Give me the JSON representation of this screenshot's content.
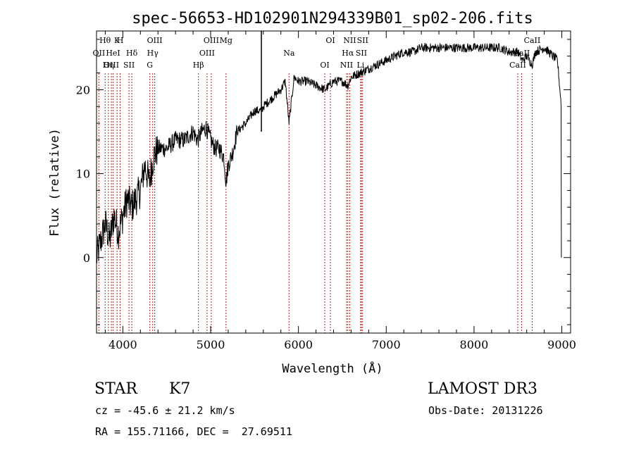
{
  "chart_data": {
    "type": "line",
    "title": "spec-56653-HD102901N294339B01_sp02-206.fits",
    "xlabel": "Wavelength (Å)",
    "ylabel": "Flux (relative)",
    "xlim": [
      3700,
      9100
    ],
    "ylim": [
      -9,
      27
    ],
    "xticks": [
      4000,
      5000,
      6000,
      7000,
      8000,
      9000
    ],
    "yticks": [
      0,
      10,
      20
    ],
    "spectrum_anchors": {
      "x": [
        3700,
        3750,
        3800,
        3850,
        3900,
        3950,
        4000,
        4050,
        4100,
        4150,
        4200,
        4250,
        4300,
        4350,
        4400,
        4500,
        4600,
        4700,
        4800,
        4850,
        4900,
        4950,
        5000,
        5050,
        5100,
        5150,
        5175,
        5200,
        5250,
        5300,
        5400,
        5500,
        5580,
        5600,
        5700,
        5800,
        5850,
        5893,
        5950,
        6000,
        6100,
        6200,
        6300,
        6400,
        6500,
        6563,
        6600,
        6700,
        6800,
        6900,
        7000,
        7100,
        7200,
        7300,
        7400,
        7500,
        7600,
        7700,
        7800,
        7900,
        8000,
        8100,
        8200,
        8300,
        8400,
        8500,
        8550,
        8600,
        8662,
        8700,
        8800,
        8850,
        8900,
        8950,
        8995
      ],
      "y": [
        0,
        2,
        4,
        2,
        5,
        3,
        5,
        7,
        6,
        7,
        8,
        11,
        9,
        12,
        13,
        13,
        14,
        14,
        15,
        14,
        15,
        15.5,
        14,
        13,
        13,
        12,
        9,
        11,
        12.5,
        15,
        16,
        17.5,
        17.5,
        18,
        19,
        20,
        21,
        16,
        21.5,
        21,
        21,
        20.5,
        20,
        21,
        21,
        20.5,
        21.5,
        22,
        22.5,
        23,
        23.5,
        24,
        24.5,
        24.5,
        25,
        25,
        25,
        25,
        25,
        25,
        25,
        25,
        25,
        25,
        24.5,
        24.5,
        23.5,
        24,
        23,
        24.5,
        25,
        24.5,
        24,
        23.5,
        18
      ]
    },
    "emission_lines": [
      {
        "label": "Hθ",
        "x": 3798
      },
      {
        "label": "OII",
        "x": 3727
      },
      {
        "label": "OIII",
        "x": 3869
      },
      {
        "label": "K",
        "x": 3934
      },
      {
        "label": "HeI",
        "x": 3889
      },
      {
        "label": "Hη",
        "x": 3835
      },
      {
        "label": "H",
        "x": 3969
      },
      {
        "label": "Hδ",
        "x": 4102
      },
      {
        "label": "SII",
        "x": 4070
      },
      {
        "label": "OIII",
        "x": 4363
      },
      {
        "label": "Hγ",
        "x": 4340
      },
      {
        "label": "G",
        "x": 4307
      },
      {
        "label": "OIII",
        "x": 5007
      },
      {
        "label": "OIII",
        "x": 4959
      },
      {
        "label": "Hβ",
        "x": 4861
      },
      {
        "label": "Mg",
        "x": 5175
      },
      {
        "label": "Na",
        "x": 5893
      },
      {
        "label": "OI",
        "x": 6300
      },
      {
        "label": "OI",
        "x": 6364
      },
      {
        "label": "Hα",
        "x": 6563
      },
      {
        "label": "NII",
        "x": 6548
      },
      {
        "label": "NII",
        "x": 6584
      },
      {
        "label": "SII",
        "x": 6717
      },
      {
        "label": "Li",
        "x": 6708
      },
      {
        "label": "SII",
        "x": 6731
      },
      {
        "label": "CaII",
        "x": 8542
      },
      {
        "label": "CaII",
        "x": 8498
      },
      {
        "label": "CaII",
        "x": 8662
      }
    ]
  },
  "info": {
    "class_label": "STAR",
    "subclass": "K7",
    "survey": "LAMOST DR3",
    "cz": "cz = -45.6 ± 21.2 km/s",
    "obs_date": "Obs-Date: 20131226",
    "coords": "RA = 155.71166, DEC =  27.69511"
  }
}
